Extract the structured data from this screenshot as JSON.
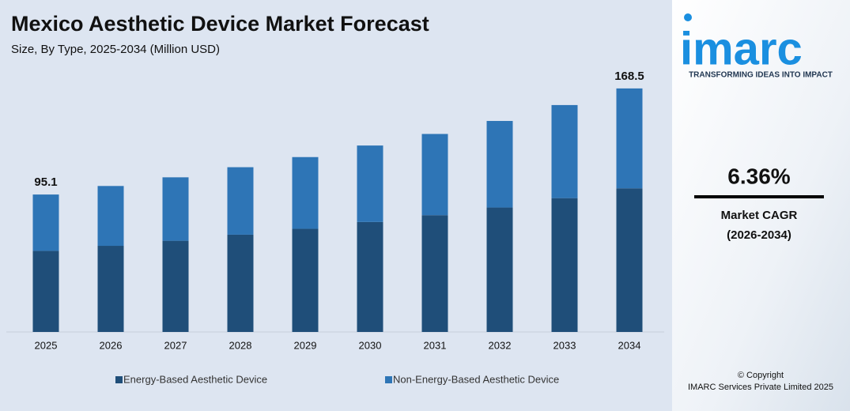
{
  "chart_data": {
    "type": "stacked_bar",
    "title": "Mexico Aesthetic Device Market Forecast",
    "subtitle": "Size, By Type, 2025-2034 (Million USD)",
    "categories": [
      "2025",
      "2026",
      "2027",
      "2028",
      "2029",
      "2030",
      "2031",
      "2032",
      "2033",
      "2034"
    ],
    "series": [
      {
        "name": "Energy-Based Aesthetic Device",
        "color": "#1f4e79",
        "values": [
          56.1,
          59.6,
          63.1,
          67.3,
          71.4,
          76.1,
          80.8,
          86.1,
          92.6,
          99.4
        ]
      },
      {
        "name": "Non-Energy-Based Aesthetic Device",
        "color": "#2e75b6",
        "values": [
          39.0,
          41.4,
          43.9,
          46.7,
          49.6,
          52.9,
          56.2,
          59.9,
          64.4,
          69.1
        ]
      }
    ],
    "total_labels": [
      {
        "category": "2025",
        "value": 95.1,
        "label": "95.1"
      },
      {
        "category": "2034",
        "value": 168.5,
        "label": "168.5"
      }
    ],
    "ylim": [
      0,
      175
    ],
    "grid": false,
    "legend": "bottom"
  },
  "sidebar": {
    "logo": "imarc",
    "tagline": "TRANSFORMING IDEAS INTO IMPACT",
    "cagr_value": "6.36%",
    "cagr_label": "Market CAGR",
    "cagr_period": "(2026-2034)",
    "copyright": "© Copyright",
    "company": "IMARC Services Private Limited 2025"
  }
}
